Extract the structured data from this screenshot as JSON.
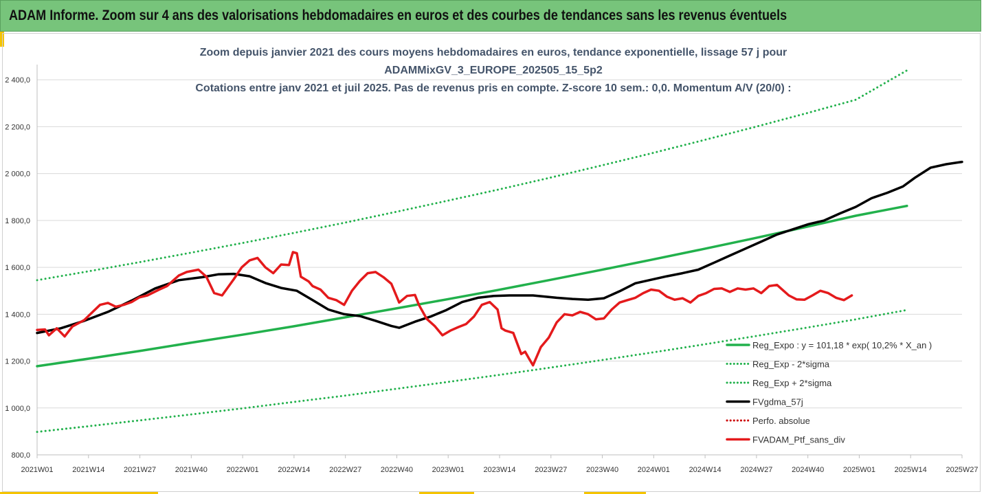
{
  "header": {
    "title": "ADAM Informe. Zoom sur 4 ans des valorisations hebdomadaires en euros et des courbes de tendances sans les revenus éventuels"
  },
  "chart_data": {
    "type": "line",
    "title_lines": [
      "Zoom depuis janvier 2021 des cours moyens hebdomadaires  en euros, tendance exponentielle, lissage 57 j pour",
      "ADAMMixGV_3_EUROPE_202505_15_5p2",
      "Cotations entre janv 2021 et juil 2025. Pas de revenus pris en compte. Z-score 10 sem.: 0,0. Momentum A/V (20/0) :"
    ],
    "x_tick_labels": [
      "2021W01",
      "2021W14",
      "2021W27",
      "2021W40",
      "2022W01",
      "2022W14",
      "2022W27",
      "2022W40",
      "2023W01",
      "2023W14",
      "2023W27",
      "2023W40",
      "2024W01",
      "2024W14",
      "2024W27",
      "2024W40",
      "2025W01",
      "2025W14",
      "2025W27"
    ],
    "ylim": [
      800,
      2400
    ],
    "y_ticks": [
      "800,0",
      "1 000,0",
      "1 200,0",
      "1 400,0",
      "1 600,0",
      "1 800,0",
      "2 000,0",
      "2 200,0",
      "2 400,0"
    ],
    "grid": "horizontal",
    "legend_position": "bottom-right",
    "series": [
      {
        "name": "Reg_Expo : y = 101,18 * exp( 10,2% *  X_an )",
        "color": "#22b14c",
        "style": "solid",
        "points": [
          [
            0,
            1178
          ],
          [
            13,
            1210
          ],
          [
            26,
            1243
          ],
          [
            39,
            1278
          ],
          [
            52,
            1312
          ],
          [
            65,
            1348
          ],
          [
            78,
            1386
          ],
          [
            91,
            1424
          ],
          [
            104,
            1463
          ],
          [
            117,
            1503
          ],
          [
            130,
            1545
          ],
          [
            143,
            1588
          ],
          [
            156,
            1632
          ],
          [
            169,
            1677
          ],
          [
            182,
            1723
          ],
          [
            195,
            1771
          ],
          [
            208,
            1820
          ],
          [
            221,
            1862
          ]
        ]
      },
      {
        "name": "Reg_Exp - 2*sigma",
        "color": "#22b14c",
        "style": "dotted",
        "points": [
          [
            0,
            898
          ],
          [
            13,
            922
          ],
          [
            26,
            947
          ],
          [
            39,
            972
          ],
          [
            52,
            998
          ],
          [
            65,
            1025
          ],
          [
            78,
            1052
          ],
          [
            91,
            1081
          ],
          [
            104,
            1110
          ],
          [
            117,
            1140
          ],
          [
            130,
            1171
          ],
          [
            143,
            1203
          ],
          [
            156,
            1236
          ],
          [
            169,
            1270
          ],
          [
            182,
            1305
          ],
          [
            195,
            1341
          ],
          [
            208,
            1378
          ],
          [
            221,
            1418
          ]
        ]
      },
      {
        "name": "Reg_Exp + 2*sigma",
        "color": "#22b14c",
        "style": "dotted",
        "points": [
          [
            0,
            1545
          ],
          [
            13,
            1583
          ],
          [
            26,
            1622
          ],
          [
            39,
            1662
          ],
          [
            52,
            1703
          ],
          [
            65,
            1746
          ],
          [
            78,
            1790
          ],
          [
            91,
            1836
          ],
          [
            104,
            1883
          ],
          [
            117,
            1931
          ],
          [
            130,
            1981
          ],
          [
            143,
            2033
          ],
          [
            156,
            2086
          ],
          [
            169,
            2141
          ],
          [
            182,
            2197
          ],
          [
            195,
            2255
          ],
          [
            208,
            2315
          ],
          [
            221,
            2440
          ]
        ]
      },
      {
        "name": "FVgdma_57j",
        "color": "#000000",
        "style": "solid",
        "points": [
          [
            0,
            1320
          ],
          [
            6,
            1340
          ],
          [
            12,
            1372
          ],
          [
            18,
            1410
          ],
          [
            24,
            1458
          ],
          [
            30,
            1510
          ],
          [
            36,
            1545
          ],
          [
            42,
            1558
          ],
          [
            46,
            1570
          ],
          [
            50,
            1572
          ],
          [
            54,
            1562
          ],
          [
            58,
            1533
          ],
          [
            62,
            1512
          ],
          [
            66,
            1500
          ],
          [
            70,
            1460
          ],
          [
            74,
            1420
          ],
          [
            78,
            1400
          ],
          [
            82,
            1392
          ],
          [
            86,
            1372
          ],
          [
            90,
            1350
          ],
          [
            92,
            1342
          ],
          [
            96,
            1368
          ],
          [
            100,
            1390
          ],
          [
            104,
            1418
          ],
          [
            108,
            1452
          ],
          [
            112,
            1470
          ],
          [
            116,
            1478
          ],
          [
            120,
            1480
          ],
          [
            126,
            1480
          ],
          [
            132,
            1470
          ],
          [
            136,
            1465
          ],
          [
            140,
            1462
          ],
          [
            144,
            1468
          ],
          [
            148,
            1498
          ],
          [
            152,
            1532
          ],
          [
            156,
            1547
          ],
          [
            160,
            1562
          ],
          [
            164,
            1575
          ],
          [
            168,
            1590
          ],
          [
            172,
            1620
          ],
          [
            176,
            1650
          ],
          [
            180,
            1680
          ],
          [
            184,
            1710
          ],
          [
            188,
            1740
          ],
          [
            192,
            1762
          ],
          [
            196,
            1784
          ],
          [
            200,
            1800
          ],
          [
            204,
            1830
          ],
          [
            208,
            1858
          ],
          [
            212,
            1895
          ],
          [
            216,
            1918
          ],
          [
            220,
            1945
          ],
          [
            223,
            1982
          ],
          [
            227,
            2025
          ],
          [
            231,
            2040
          ],
          [
            235,
            2050
          ]
        ]
      },
      {
        "name": "Perfo. absolue",
        "color": "#cc0000",
        "style": "dotted",
        "points": []
      },
      {
        "name": "FVADAM_Ptf_sans_div",
        "color": "#e41a1c",
        "style": "solid",
        "points": [
          [
            0,
            1333
          ],
          [
            2,
            1335
          ],
          [
            3,
            1310
          ],
          [
            5,
            1340
          ],
          [
            7,
            1305
          ],
          [
            9,
            1348
          ],
          [
            12,
            1375
          ],
          [
            14,
            1408
          ],
          [
            16,
            1440
          ],
          [
            18,
            1448
          ],
          [
            20,
            1432
          ],
          [
            22,
            1440
          ],
          [
            24,
            1452
          ],
          [
            26,
            1472
          ],
          [
            28,
            1480
          ],
          [
            31,
            1505
          ],
          [
            33,
            1520
          ],
          [
            36,
            1565
          ],
          [
            38,
            1580
          ],
          [
            41,
            1590
          ],
          [
            43,
            1560
          ],
          [
            45,
            1490
          ],
          [
            47,
            1480
          ],
          [
            50,
            1550
          ],
          [
            52,
            1600
          ],
          [
            54,
            1630
          ],
          [
            56,
            1640
          ],
          [
            58,
            1600
          ],
          [
            60,
            1575
          ],
          [
            62,
            1612
          ],
          [
            64,
            1610
          ],
          [
            65,
            1665
          ],
          [
            66,
            1660
          ],
          [
            67,
            1560
          ],
          [
            69,
            1540
          ],
          [
            70,
            1520
          ],
          [
            72,
            1505
          ],
          [
            74,
            1470
          ],
          [
            76,
            1460
          ],
          [
            78,
            1440
          ],
          [
            80,
            1500
          ],
          [
            82,
            1542
          ],
          [
            84,
            1575
          ],
          [
            86,
            1580
          ],
          [
            88,
            1558
          ],
          [
            90,
            1530
          ],
          [
            92,
            1450
          ],
          [
            94,
            1478
          ],
          [
            96,
            1482
          ],
          [
            97,
            1440
          ],
          [
            99,
            1380
          ],
          [
            101,
            1350
          ],
          [
            103,
            1310
          ],
          [
            105,
            1330
          ],
          [
            107,
            1345
          ],
          [
            109,
            1358
          ],
          [
            111,
            1390
          ],
          [
            113,
            1440
          ],
          [
            115,
            1452
          ],
          [
            117,
            1420
          ],
          [
            118,
            1340
          ],
          [
            119,
            1330
          ],
          [
            121,
            1320
          ],
          [
            123,
            1230
          ],
          [
            124,
            1240
          ],
          [
            125,
            1210
          ],
          [
            126,
            1182
          ],
          [
            128,
            1260
          ],
          [
            130,
            1300
          ],
          [
            132,
            1365
          ],
          [
            134,
            1400
          ],
          [
            136,
            1395
          ],
          [
            138,
            1410
          ],
          [
            140,
            1400
          ],
          [
            142,
            1378
          ],
          [
            144,
            1382
          ],
          [
            146,
            1420
          ],
          [
            148,
            1450
          ],
          [
            150,
            1460
          ],
          [
            152,
            1470
          ],
          [
            154,
            1490
          ],
          [
            156,
            1505
          ],
          [
            158,
            1500
          ],
          [
            160,
            1475
          ],
          [
            162,
            1462
          ],
          [
            164,
            1468
          ],
          [
            166,
            1450
          ],
          [
            168,
            1478
          ],
          [
            170,
            1490
          ],
          [
            172,
            1508
          ],
          [
            174,
            1510
          ],
          [
            176,
            1495
          ],
          [
            178,
            1510
          ],
          [
            180,
            1505
          ],
          [
            182,
            1510
          ],
          [
            184,
            1490
          ],
          [
            186,
            1520
          ],
          [
            188,
            1525
          ],
          [
            189,
            1510
          ],
          [
            191,
            1480
          ],
          [
            193,
            1463
          ],
          [
            195,
            1462
          ],
          [
            197,
            1480
          ],
          [
            199,
            1500
          ],
          [
            201,
            1490
          ],
          [
            203,
            1470
          ],
          [
            205,
            1460
          ],
          [
            207,
            1480
          ]
        ]
      }
    ]
  }
}
